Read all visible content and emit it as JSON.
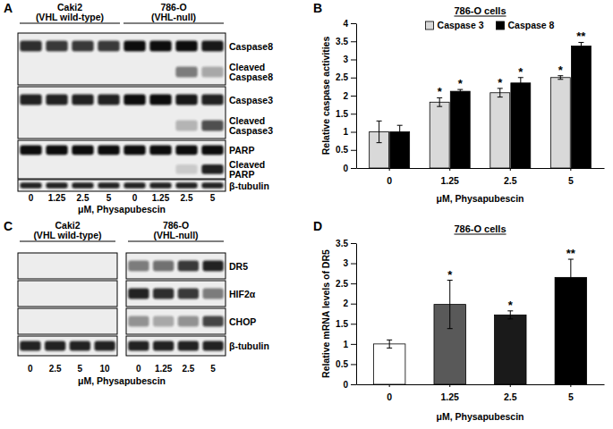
{
  "chart_data": [
    {
      "type": "bar",
      "annotations": [
        "B"
      ],
      "title": "786-O cells",
      "y_label": "Relative caspase activities",
      "x_label": "μM, Physapubescin",
      "categories": [
        "0",
        "1.25",
        "2.5",
        "5"
      ],
      "series": [
        {
          "name": "Caspase 3",
          "color": "#d9d9d9",
          "values": [
            1,
            1.82,
            2.08,
            2.5
          ],
          "errors": [
            0.3,
            0.12,
            0.12,
            0.05
          ],
          "significance": [
            null,
            "*",
            "*",
            "*"
          ]
        },
        {
          "name": "Caspase 8",
          "color": "#000000",
          "values": [
            1,
            2.12,
            2.35,
            3.37
          ],
          "errors": [
            0.18,
            0.05,
            0.15,
            0.1
          ],
          "significance": [
            null,
            "*",
            "*",
            "**"
          ]
        }
      ],
      "ylim": [
        0,
        4
      ],
      "yticks": [
        0,
        0.5,
        1,
        1.5,
        2,
        2.5,
        3,
        3.5,
        4
      ],
      "grid": false,
      "legend": "top"
    },
    {
      "type": "bar",
      "annotations": [
        "D"
      ],
      "title": "786-O cells",
      "y_label": "Relative mRNA levels of DR5",
      "x_label": "μM, Physapubescin",
      "categories": [
        "0",
        "1.25",
        "2.5",
        "5"
      ],
      "values": [
        1,
        1.98,
        1.72,
        2.65
      ],
      "errors": [
        0.1,
        0.6,
        0.1,
        0.45
      ],
      "significance": [
        null,
        "*",
        "*",
        "**"
      ],
      "colors": [
        "#ffffff",
        "#595959",
        "#1a1a1a",
        "#000000"
      ],
      "ylim": [
        0,
        3.5
      ],
      "yticks": [
        0,
        0.5,
        1,
        1.5,
        2,
        2.5,
        3,
        3.5
      ],
      "grid": false
    }
  ],
  "blots": [
    {
      "annotation": "A",
      "split": false,
      "x_label": "μM, Physapubescin",
      "groups": [
        {
          "title": [
            "Caki2",
            "(VHL wild-type)"
          ],
          "lanes": [
            "0",
            "1.25",
            "2.5",
            "5"
          ]
        },
        {
          "title": [
            "786-O",
            "(VHL-null)"
          ],
          "lanes": [
            "0",
            "1.25",
            "2.5",
            "5"
          ]
        }
      ],
      "strips": [
        {
          "rows": [
            {
              "label": [
                "Caspase8"
              ],
              "intensity": [
                0.85,
                0.8,
                0.8,
                0.8,
                1,
                1,
                1,
                0.95
              ]
            },
            {
              "label": [
                "Cleaved",
                "Caspase8"
              ],
              "intensity": [
                0,
                0,
                0,
                0,
                0,
                0,
                0.5,
                0.3
              ]
            }
          ]
        },
        {
          "rows": [
            {
              "label": [
                "Caspase3"
              ],
              "intensity": [
                0.9,
                0.9,
                0.9,
                0.9,
                1,
                1,
                0.95,
                0.9
              ]
            },
            {
              "label": [
                "Cleaved",
                "Caspase3"
              ],
              "intensity": [
                0,
                0,
                0,
                0,
                0,
                0,
                0.25,
                0.7
              ]
            }
          ]
        },
        {
          "rows": [
            {
              "label": [
                "PARP"
              ],
              "intensity": [
                1,
                1,
                1,
                1,
                1,
                1,
                1,
                1
              ]
            },
            {
              "label": [
                "Cleaved",
                "PARP"
              ],
              "intensity": [
                0,
                0,
                0,
                0,
                0,
                0,
                0.15,
                0.9
              ]
            }
          ]
        },
        {
          "rows": [
            {
              "label": [
                "β-tubulin"
              ],
              "intensity": [
                0.9,
                0.9,
                0.9,
                0.9,
                0.9,
                0.9,
                0.9,
                0.9
              ]
            }
          ]
        }
      ]
    },
    {
      "annotation": "C",
      "split": true,
      "x_label": "μM, Physapubescin",
      "groups": [
        {
          "title": [
            "Caki2",
            "(VHL wild-type)"
          ],
          "lanes": [
            "0",
            "2.5",
            "5",
            "10"
          ]
        },
        {
          "title": [
            "786-O",
            "(VHL-null)"
          ],
          "lanes": [
            "0",
            "1.25",
            "2.5",
            "5"
          ]
        }
      ],
      "strips": [
        {
          "rows": [
            {
              "label": [
                "DR5"
              ],
              "intensity": [
                0,
                0,
                0,
                0,
                0.5,
                0.55,
                0.8,
                0.9
              ]
            }
          ]
        },
        {
          "rows": [
            {
              "label": [
                "HIF2α"
              ],
              "intensity": [
                0,
                0,
                0,
                0,
                0.9,
                0.85,
                0.8,
                0.5
              ]
            }
          ]
        },
        {
          "rows": [
            {
              "label": [
                "CHOP"
              ],
              "intensity": [
                0,
                0,
                0,
                0,
                0.4,
                0.3,
                0.4,
                0.75
              ]
            }
          ]
        },
        {
          "rows": [
            {
              "label": [
                "β-tubulin"
              ],
              "intensity": [
                0.9,
                0.9,
                0.9,
                0.9,
                0.9,
                0.9,
                0.9,
                0.9
              ]
            }
          ]
        }
      ]
    }
  ]
}
